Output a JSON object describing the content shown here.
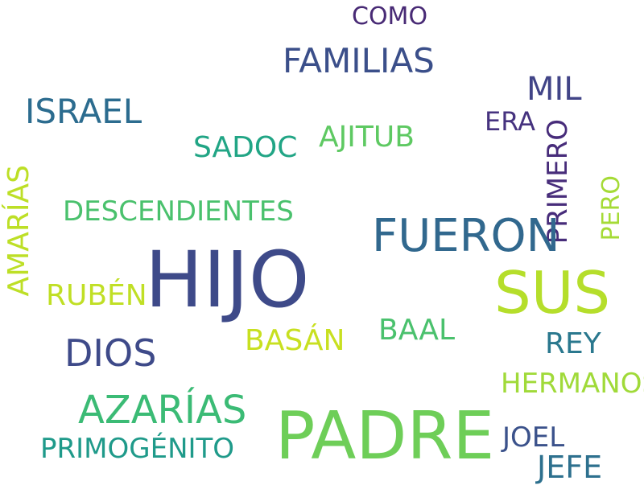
{
  "word_cloud": {
    "words": [
      {
        "text": "COMO",
        "color": "#482a75"
      },
      {
        "text": "FAMILIAS",
        "color": "#3b4f8a"
      },
      {
        "text": "MIL",
        "color": "#414487"
      },
      {
        "text": "ISRAEL",
        "color": "#2c6c8f"
      },
      {
        "text": "ERA",
        "color": "#46337f"
      },
      {
        "text": "AJITUB",
        "color": "#5ec962"
      },
      {
        "text": "SADOC",
        "color": "#21a585"
      },
      {
        "text": "PRIMERO",
        "color": "#472c7a"
      },
      {
        "text": "PERO",
        "color": "#a5db36"
      },
      {
        "text": "AMARÍAS",
        "color": "#bddf26"
      },
      {
        "text": "DESCENDIENTES",
        "color": "#4ac16d"
      },
      {
        "text": "FUERON",
        "color": "#31688e"
      },
      {
        "text": "HIJO",
        "color": "#3e4a89"
      },
      {
        "text": "SUS",
        "color": "#b5de2b"
      },
      {
        "text": "RUBÉN",
        "color": "#c0df25"
      },
      {
        "text": "BAAL",
        "color": "#4ac16d"
      },
      {
        "text": "BASÁN",
        "color": "#c8e020"
      },
      {
        "text": "DIOS",
        "color": "#3e4a89"
      },
      {
        "text": "REY",
        "color": "#2a788e"
      },
      {
        "text": "HERMANOS",
        "color": "#a0da39"
      },
      {
        "text": "AZARÍAS",
        "color": "#3bbb75"
      },
      {
        "text": "PADRE",
        "color": "#6ece58"
      },
      {
        "text": "JOEL",
        "color": "#3b528b"
      },
      {
        "text": "PRIMOGÉNITO",
        "color": "#1f9a8a"
      },
      {
        "text": "JEFE",
        "color": "#2d708e"
      }
    ]
  }
}
